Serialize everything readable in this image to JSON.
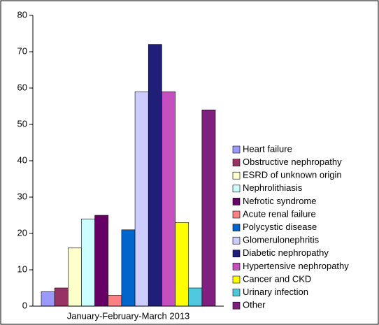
{
  "chart_data": {
    "type": "bar",
    "categories": [
      "January-February-March 2013"
    ],
    "series": [
      {
        "name": "Heart failure",
        "color": "#9999ff",
        "values": [
          4
        ]
      },
      {
        "name": "Obstructive nephropathy",
        "color": "#993366",
        "values": [
          5
        ]
      },
      {
        "name": "ESRD of unknown origin",
        "color": "#ffffcc",
        "values": [
          16
        ]
      },
      {
        "name": "Nephrolithiasis",
        "color": "#ccffff",
        "values": [
          24
        ]
      },
      {
        "name": "Nefrotic syndrome",
        "color": "#660066",
        "values": [
          25
        ]
      },
      {
        "name": "Acute renal failure",
        "color": "#ff8080",
        "values": [
          3
        ]
      },
      {
        "name": "Polycystic disease",
        "color": "#0066cc",
        "values": [
          21
        ]
      },
      {
        "name": "Glomerulonephritis",
        "color": "#ccccff",
        "values": [
          59
        ]
      },
      {
        "name": "Diabetic nephropathy",
        "color": "#1f1f7a",
        "values": [
          72
        ]
      },
      {
        "name": "Hypertensive nephropathy",
        "color": "#c64fbf",
        "values": [
          59
        ]
      },
      {
        "name": "Cancer and CKD",
        "color": "#ffff00",
        "values": [
          23
        ]
      },
      {
        "name": "Urinary infection",
        "color": "#4fc8e0",
        "values": [
          5
        ]
      },
      {
        "name": "Other",
        "color": "#7f1f7f",
        "values": [
          54
        ]
      }
    ],
    "ylim": [
      0,
      80
    ],
    "yticks": [
      0,
      10,
      20,
      30,
      40,
      50,
      60,
      70,
      80
    ],
    "legend": "right"
  }
}
